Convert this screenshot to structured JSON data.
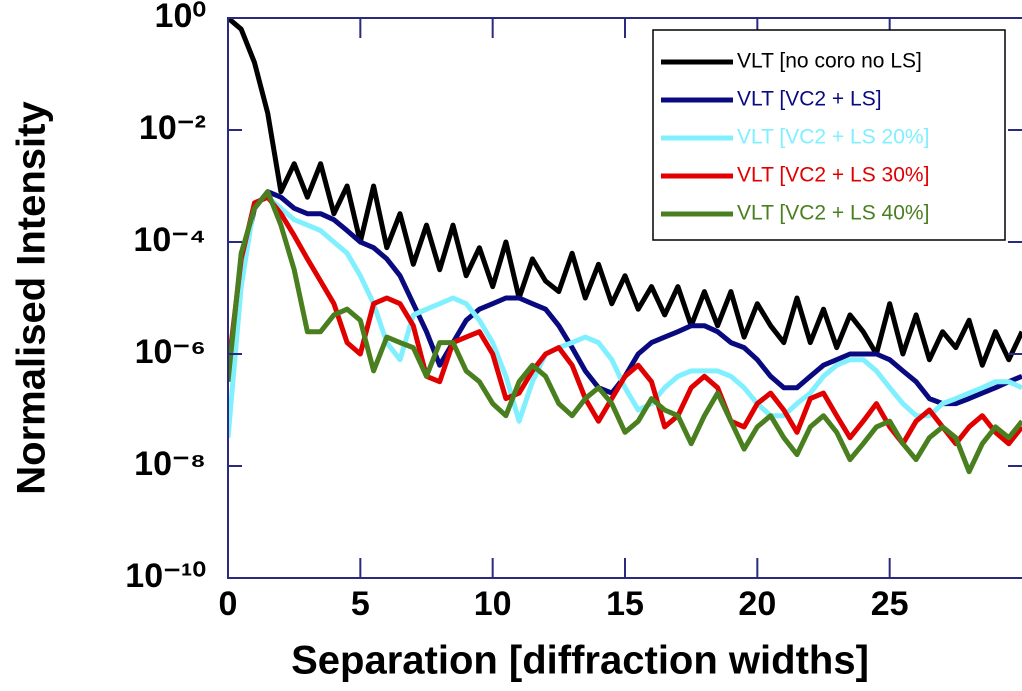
{
  "chart_data": {
    "type": "line",
    "xlabel": "Separation [diffraction widths]",
    "ylabel": "Normalised Intensity",
    "log_y": true,
    "legend": "upper right",
    "xlim": [
      0,
      30
    ],
    "ylim": [
      1e-10,
      1
    ],
    "xticks": [
      0,
      5,
      10,
      15,
      20,
      25
    ],
    "yticks": [
      {
        "value": 1,
        "label": "10⁰"
      },
      {
        "value": 0.01,
        "label": "10⁻²"
      },
      {
        "value": 0.0001,
        "label": "10⁻⁴"
      },
      {
        "value": 1e-06,
        "label": "10⁻⁶"
      },
      {
        "value": 1e-08,
        "label": "10⁻⁸"
      },
      {
        "value": 1e-10,
        "label": "10⁻¹⁰"
      }
    ],
    "x": [
      0,
      0.5,
      1,
      1.5,
      2,
      2.5,
      3,
      3.5,
      4,
      4.5,
      5,
      5.5,
      6,
      6.5,
      7,
      7.5,
      8,
      8.5,
      9,
      9.5,
      10,
      10.5,
      11,
      11.5,
      12,
      12.5,
      13,
      13.5,
      14,
      14.5,
      15,
      15.5,
      16,
      16.5,
      17,
      17.5,
      18,
      18.5,
      19,
      19.5,
      20,
      20.5,
      21,
      21.5,
      22,
      22.5,
      23,
      23.5,
      24,
      24.5,
      25,
      25.5,
      26,
      26.5,
      27,
      27.5,
      28,
      28.5,
      29,
      29.5,
      30
    ],
    "series": [
      {
        "name": "VLT [no coro no LS]",
        "color": "#000000",
        "values": [
          1,
          0.63,
          0.16,
          0.02,
          0.00079,
          0.0025,
          0.00063,
          0.0025,
          0.00032,
          0.001,
          0.0001,
          0.001,
          7.9e-05,
          0.00032,
          4e-05,
          0.0002,
          3.2e-05,
          0.0002,
          2.5e-05,
          7.9e-05,
          1.6e-05,
          0.0001,
          1e-05,
          5e-05,
          2e-05,
          1.3e-05,
          6.3e-05,
          1e-05,
          4e-05,
          7.9e-06,
          2.5e-05,
          6.3e-06,
          1.6e-05,
          5e-06,
          1.6e-05,
          3.2e-06,
          1.3e-05,
          3.2e-06,
          1.3e-05,
          2e-06,
          7.9e-06,
          3.2e-06,
          1.6e-06,
          1e-05,
          1.6e-06,
          6.3e-06,
          1.3e-06,
          5e-06,
          2.5e-06,
          1e-06,
          7.9e-06,
          1e-06,
          5e-06,
          7.9e-07,
          2.5e-06,
          1.3e-06,
          4e-06,
          6.3e-07,
          2.5e-06,
          7.9e-07,
          2.5e-06
        ]
      },
      {
        "name": "VLT [VC2 + LS]",
        "color": "#0a0a80",
        "values": [
          4e-07,
          3.2e-05,
          0.0004,
          0.00079,
          0.00063,
          0.0004,
          0.00032,
          0.00032,
          0.00025,
          0.00016,
          0.0001,
          7.9e-05,
          5e-05,
          2.5e-05,
          7.9e-06,
          2.5e-06,
          6.3e-07,
          1.6e-06,
          4e-06,
          6.3e-06,
          7.9e-06,
          1e-05,
          1e-05,
          7.9e-06,
          6.3e-06,
          3.2e-06,
          1.3e-06,
          5e-07,
          2.5e-07,
          2e-07,
          4e-07,
          1e-06,
          1.6e-06,
          2e-06,
          2.5e-06,
          3.2e-06,
          3.2e-06,
          2.5e-06,
          1.6e-06,
          1.3e-06,
          7.9e-07,
          4e-07,
          2.5e-07,
          2.5e-07,
          4e-07,
          6.3e-07,
          7.9e-07,
          1e-06,
          1e-06,
          1e-06,
          7.9e-07,
          5e-07,
          3.2e-07,
          1.6e-07,
          1.3e-07,
          1.3e-07,
          1.6e-07,
          2e-07,
          2.5e-07,
          3.2e-07,
          4e-07
        ]
      },
      {
        "name": "VLT [VC2 + LS 20%]",
        "color": "#80f0ff",
        "values": [
          3.2e-08,
          1.6e-05,
          0.0005,
          0.00063,
          0.0004,
          0.00025,
          0.0002,
          0.00016,
          0.0001,
          6.3e-05,
          2.5e-05,
          7.9e-06,
          1.6e-06,
          7.9e-07,
          5e-06,
          6.3e-06,
          7.9e-06,
          1e-05,
          7.9e-06,
          4e-06,
          1.6e-06,
          4e-07,
          6.3e-08,
          3.2e-07,
          1e-06,
          1.3e-06,
          1.6e-06,
          2e-06,
          1.6e-06,
          7.9e-07,
          2.5e-07,
          1e-07,
          1.3e-07,
          2.5e-07,
          4e-07,
          5e-07,
          5e-07,
          5e-07,
          4e-07,
          2.5e-07,
          1.3e-07,
          7.9e-08,
          7.9e-08,
          1.3e-07,
          2e-07,
          4e-07,
          6.3e-07,
          7.9e-07,
          7.9e-07,
          5e-07,
          2.5e-07,
          1.3e-07,
          7.9e-08,
          7.9e-08,
          1.3e-07,
          1.6e-07,
          2e-07,
          2.5e-07,
          3.2e-07,
          3.2e-07,
          2.5e-07
        ]
      },
      {
        "name": "VLT [VC2 + LS 30%]",
        "color": "#e00000",
        "values": [
          5e-07,
          5e-05,
          0.0005,
          0.00063,
          0.00032,
          0.00013,
          5e-05,
          2e-05,
          7.9e-06,
          1.6e-06,
          1e-06,
          7.9e-06,
          1e-05,
          7.9e-06,
          3.2e-06,
          4e-07,
          3.2e-07,
          1.6e-06,
          2e-06,
          2.5e-06,
          1e-06,
          1.6e-07,
          2e-07,
          5e-07,
          1e-06,
          1.3e-06,
          6.3e-07,
          1.6e-07,
          6.3e-08,
          1.6e-07,
          4e-07,
          6.3e-07,
          3.2e-07,
          5e-08,
          7.9e-08,
          2.5e-07,
          4e-07,
          2.5e-07,
          6.3e-08,
          5e-08,
          1.3e-07,
          2e-07,
          1e-07,
          4e-08,
          1.6e-07,
          2e-07,
          7.9e-08,
          3.2e-08,
          6.3e-08,
          1.3e-07,
          5e-08,
          2.5e-08,
          6.3e-08,
          1e-07,
          5e-08,
          2.5e-08,
          5e-08,
          7.9e-08,
          4e-08,
          2.5e-08,
          5e-08
        ]
      },
      {
        "name": "VLT [VC2 + LS 40%]",
        "color": "#4a7f20",
        "values": [
          3.2e-07,
          6.3e-05,
          0.0004,
          0.00079,
          0.0002,
          3.2e-05,
          2.5e-06,
          2.5e-06,
          5e-06,
          6.3e-06,
          4e-06,
          5e-07,
          2e-06,
          1.6e-06,
          1.3e-06,
          4e-07,
          1.6e-06,
          1.6e-06,
          5e-07,
          3.2e-07,
          1.3e-07,
          7.9e-08,
          3.2e-07,
          6.3e-07,
          4e-07,
          1.3e-07,
          7.9e-08,
          1.6e-07,
          2.5e-07,
          1.3e-07,
          4e-08,
          6.3e-08,
          1.6e-07,
          1e-07,
          7.9e-08,
          2.5e-08,
          7.9e-08,
          2e-07,
          6.3e-08,
          2e-08,
          5e-08,
          7.9e-08,
          3.2e-08,
          1.6e-08,
          5e-08,
          7.9e-08,
          4e-08,
          1.3e-08,
          2.5e-08,
          5e-08,
          6.3e-08,
          2.5e-08,
          1.3e-08,
          3.2e-08,
          5e-08,
          3.2e-08,
          7.9e-09,
          2.5e-08,
          5e-08,
          3.2e-08,
          6.3e-08
        ]
      }
    ]
  }
}
